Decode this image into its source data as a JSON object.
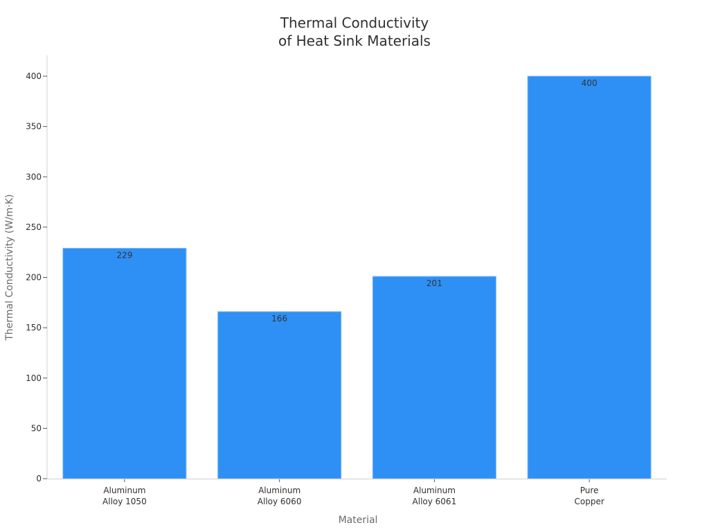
{
  "chart_data": {
    "type": "bar",
    "title": "Thermal Conductivity\nof Heat Sink Materials",
    "title_lines": [
      "Thermal Conductivity",
      "of Heat Sink Materials"
    ],
    "xlabel": "Material",
    "ylabel": "Thermal Conductivity (W/m·K)",
    "categories": [
      "Aluminum\nAlloy 1050",
      "Aluminum\nAlloy 6060",
      "Aluminum\nAlloy 6061",
      "Pure\nCopper"
    ],
    "category_lines": [
      [
        "Aluminum",
        "Alloy 1050"
      ],
      [
        "Aluminum",
        "Alloy 6060"
      ],
      [
        "Aluminum",
        "Alloy 6061"
      ],
      [
        "Pure",
        "Copper"
      ]
    ],
    "values": [
      229,
      166,
      201,
      400
    ],
    "data_labels": [
      "229",
      "166",
      "201",
      "400"
    ],
    "ylim": [
      0,
      400
    ],
    "yticks": [
      0,
      50,
      100,
      150,
      200,
      250,
      300,
      350,
      400
    ],
    "grid": false,
    "legend": null,
    "colors": {
      "bar": "#2e90f5",
      "bar_edge": "#7ab8f8",
      "axis": "#d0d0d0"
    }
  }
}
